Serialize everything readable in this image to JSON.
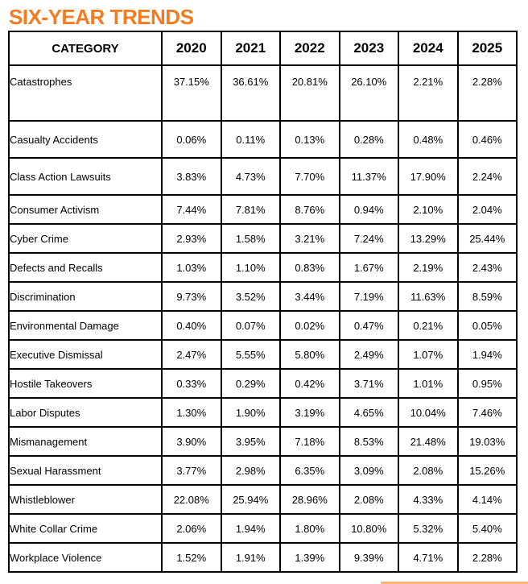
{
  "title": "SIX-YEAR TRENDS",
  "columns": [
    "CATEGORY",
    "2020",
    "2021",
    "2022",
    "2023",
    "2024",
    "2025"
  ],
  "rows": [
    {
      "category": "Catastrophes",
      "values": [
        "37.15%",
        "36.61%",
        "20.81%",
        "26.10%",
        "2.21%",
        "2.28%"
      ]
    },
    {
      "category": "Casualty Accidents",
      "values": [
        "0.06%",
        "0.11%",
        "0.13%",
        "0.28%",
        "0.48%",
        "0.46%"
      ]
    },
    {
      "category": "Class Action Lawsuits",
      "values": [
        "3.83%",
        "4.73%",
        "7.70%",
        "11.37%",
        "17.90%",
        "2.24%"
      ]
    },
    {
      "category": "Consumer Activism",
      "values": [
        "7.44%",
        "7.81%",
        "8.76%",
        "0.94%",
        "2.10%",
        "2.04%"
      ]
    },
    {
      "category": "Cyber Crime",
      "values": [
        "2.93%",
        "1.58%",
        "3.21%",
        "7.24%",
        "13.29%",
        "25.44%"
      ]
    },
    {
      "category": "Defects and Recalls",
      "values": [
        "1.03%",
        "1.10%",
        "0.83%",
        "1.67%",
        "2.19%",
        "2.43%"
      ]
    },
    {
      "category": "Discrimination",
      "values": [
        "9.73%",
        "3.52%",
        "3.44%",
        "7.19%",
        "11.63%",
        "8.59%"
      ]
    },
    {
      "category": "Environmental Damage",
      "values": [
        "0.40%",
        "0.07%",
        "0.02%",
        "0.47%",
        "0.21%",
        "0.05%"
      ]
    },
    {
      "category": "Executive Dismissal",
      "values": [
        "2.47%",
        "5.55%",
        "5.80%",
        "2.49%",
        "1.07%",
        "1.94%"
      ]
    },
    {
      "category": "Hostile Takeovers",
      "values": [
        "0.33%",
        "0.29%",
        "0.42%",
        "3.71%",
        "1.01%",
        "0.95%"
      ]
    },
    {
      "category": "Labor Disputes",
      "values": [
        "1.30%",
        "1.90%",
        "3.19%",
        "4.65%",
        "10.04%",
        "7.46%"
      ]
    },
    {
      "category": "Mismanagement",
      "values": [
        "3.90%",
        "3.95%",
        "7.18%",
        "8.53%",
        "21.48%",
        "19.03%"
      ]
    },
    {
      "category": "Sexual Harassment",
      "values": [
        "3.77%",
        "2.98%",
        "6.35%",
        "3.09%",
        "2.08%",
        "15.26%"
      ]
    },
    {
      "category": "Whistleblower",
      "values": [
        "22.08%",
        "25.94%",
        "28.96%",
        "2.08%",
        "4.33%",
        "4.14%"
      ]
    },
    {
      "category": "White Collar Crime",
      "values": [
        "2.06%",
        "1.94%",
        "1.80%",
        "10.80%",
        "5.32%",
        "5.40%"
      ]
    },
    {
      "category": "Workplace Violence",
      "values": [
        "1.52%",
        "1.91%",
        "1.39%",
        "9.39%",
        "4.71%",
        "2.28%"
      ]
    }
  ],
  "colors": {
    "title": "#f47b20",
    "border": "#000000",
    "footer_accent": "#f6b27a"
  }
}
